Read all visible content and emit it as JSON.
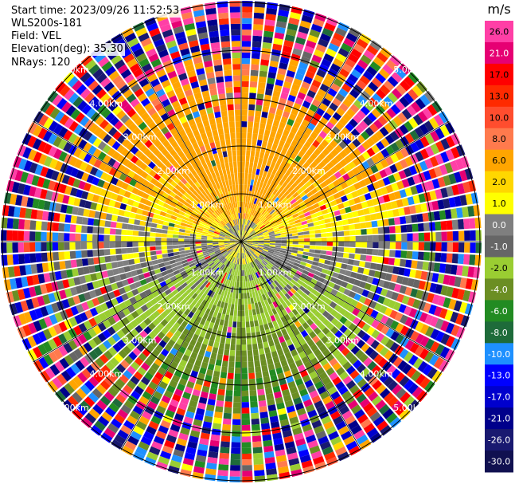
{
  "header": {
    "start_time": "Start time: 2023/09/26 11:52:53",
    "instrument": "WLS200s-181",
    "field": "Field: VEL",
    "elevation": "Elevation(deg): 35.30",
    "nrays": "NRays: 120"
  },
  "colorbar": {
    "unit": "m/s",
    "ticks": [
      "26.0",
      "21.0",
      "17.0",
      "13.0",
      "10.0",
      "8.0",
      "6.0",
      "2.0",
      "1.0",
      "0.0",
      "-1.0",
      "-2.0",
      "-4.0",
      "-6.0",
      "-8.0",
      "-10.0",
      "-13.0",
      "-17.0",
      "-21.0",
      "-26.0",
      "-30.0"
    ],
    "colors": [
      "#ff3fa6",
      "#e60073",
      "#ff0000",
      "#ff2a00",
      "#ff4d2e",
      "#ff7a4d",
      "#ffa500",
      "#ffd700",
      "#ffff00",
      "#7f7f7f",
      "#666666",
      "#9acd32",
      "#6b8e23",
      "#228b22",
      "#1e6b3a",
      "#1e90ff",
      "#0000ff",
      "#0000cd",
      "#00008b",
      "#191970",
      "#101050"
    ]
  },
  "chart_data": {
    "type": "heatmap",
    "plot": "PPI polar radial velocity",
    "field": "VEL",
    "units": "m/s",
    "nrays": 120,
    "elevation_deg": 35.3,
    "range_rings": [
      {
        "label": "1.00km"
      },
      {
        "label": "2.00km"
      },
      {
        "label": "3.00km"
      },
      {
        "label": "4.00km"
      },
      {
        "label": "5.00km"
      }
    ],
    "value_range": [
      -30.0,
      26.0
    ],
    "pattern": {
      "inner_positive_sector": "north half, values 2 to 6 m/s",
      "inner_negative_sector": "south half, values -2 to -6 m/s",
      "outer_range": "noisy, full scale"
    }
  }
}
